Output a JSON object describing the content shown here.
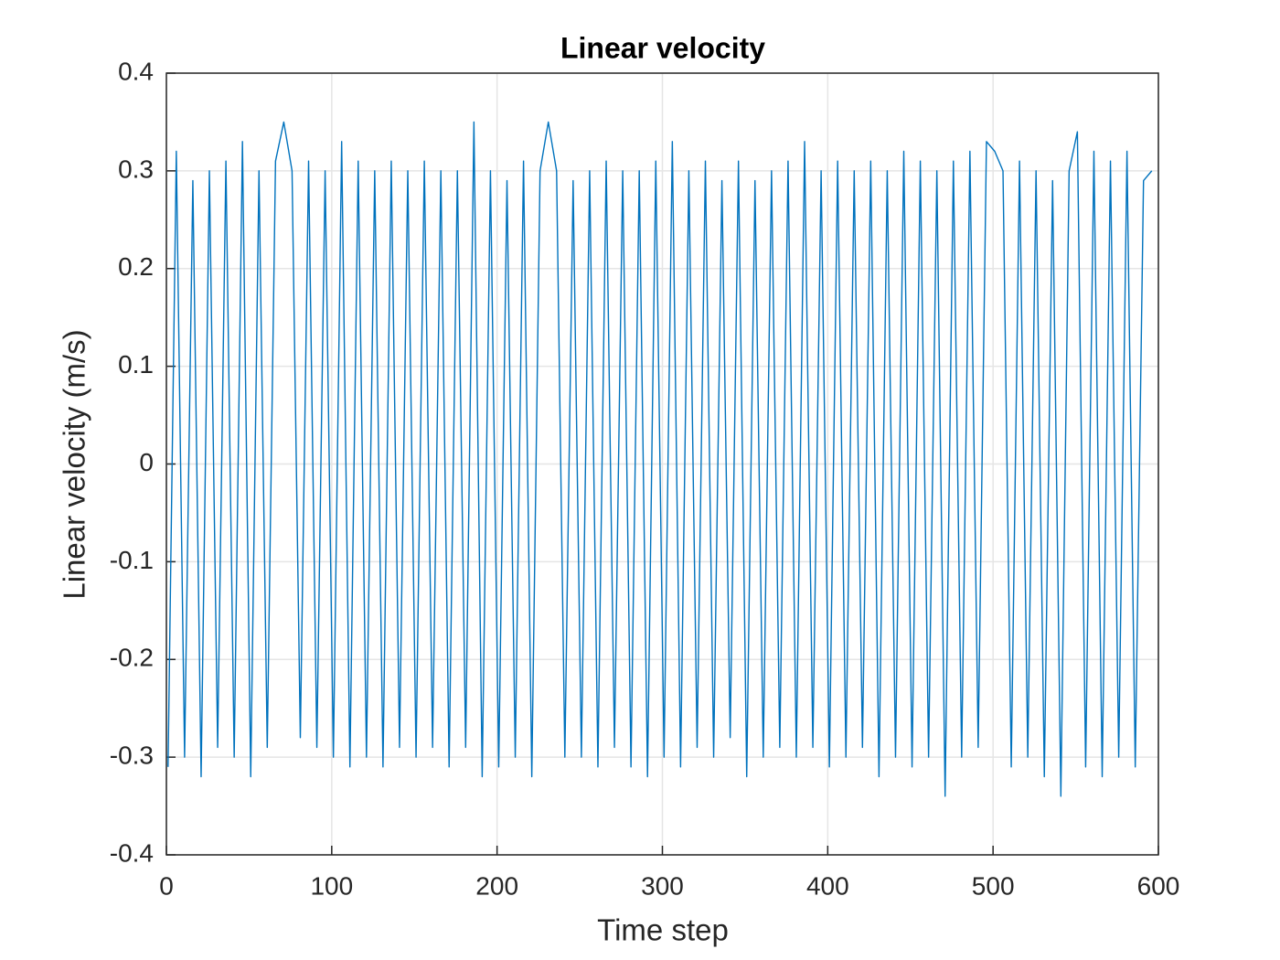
{
  "chart_data": {
    "type": "line",
    "title": "Linear velocity",
    "x_label": "Time step",
    "y_label": "Linear velocity (m/s)",
    "x": [
      1,
      6,
      11,
      16,
      21,
      26,
      31,
      36,
      41,
      46,
      51,
      56,
      61,
      66,
      71,
      76,
      81,
      86,
      91,
      96,
      101,
      106,
      111,
      116,
      121,
      126,
      131,
      136,
      141,
      146,
      151,
      156,
      161,
      166,
      171,
      176,
      181,
      186,
      191,
      196,
      201,
      206,
      211,
      216,
      221,
      226,
      231,
      236,
      241,
      246,
      251,
      256,
      261,
      266,
      271,
      276,
      281,
      286,
      291,
      296,
      301,
      306,
      311,
      316,
      321,
      326,
      331,
      336,
      341,
      346,
      351,
      356,
      361,
      366,
      371,
      376,
      381,
      386,
      391,
      396,
      401,
      406,
      411,
      416,
      421,
      426,
      431,
      436,
      441,
      446,
      451,
      456,
      461,
      466,
      471,
      476,
      481,
      486,
      491,
      496,
      501,
      506,
      511,
      516,
      521,
      526,
      531,
      536,
      541,
      546,
      551,
      556,
      561,
      566,
      571,
      576,
      581,
      586,
      591,
      596
    ],
    "values": [
      -0.31,
      0.32,
      -0.3,
      0.29,
      -0.32,
      0.3,
      -0.29,
      0.31,
      -0.3,
      0.33,
      -0.32,
      0.3,
      -0.29,
      0.31,
      0.35,
      0.3,
      -0.28,
      0.31,
      -0.29,
      0.3,
      -0.3,
      0.33,
      -0.31,
      0.31,
      -0.3,
      0.3,
      -0.31,
      0.31,
      -0.29,
      0.3,
      -0.3,
      0.31,
      -0.29,
      0.3,
      -0.31,
      0.3,
      -0.29,
      0.35,
      -0.32,
      0.3,
      -0.31,
      0.29,
      -0.3,
      0.31,
      -0.32,
      0.3,
      0.35,
      0.3,
      -0.3,
      0.29,
      -0.3,
      0.3,
      -0.31,
      0.31,
      -0.29,
      0.3,
      -0.31,
      0.3,
      -0.32,
      0.31,
      -0.3,
      0.33,
      -0.31,
      0.3,
      -0.29,
      0.31,
      -0.3,
      0.29,
      -0.28,
      0.31,
      -0.32,
      0.29,
      -0.3,
      0.3,
      -0.29,
      0.31,
      -0.3,
      0.33,
      -0.29,
      0.3,
      -0.31,
      0.31,
      -0.3,
      0.3,
      -0.29,
      0.31,
      -0.32,
      0.3,
      -0.3,
      0.32,
      -0.31,
      0.31,
      -0.3,
      0.3,
      -0.34,
      0.31,
      -0.3,
      0.32,
      -0.29,
      0.33,
      0.32,
      0.3,
      -0.31,
      0.31,
      -0.3,
      0.3,
      -0.32,
      0.29,
      -0.34,
      0.3,
      0.34,
      -0.31,
      0.32,
      -0.32,
      0.31,
      -0.3,
      0.32,
      -0.31,
      0.29,
      0.3
    ],
    "color": "#0072bd",
    "xlim": [
      0,
      600
    ],
    "xticks": [
      0,
      100,
      200,
      300,
      400,
      500,
      600
    ],
    "ylim": [
      -0.4,
      0.4
    ],
    "yticks": [
      -0.4,
      -0.3,
      -0.2,
      -0.1,
      0,
      0.1,
      0.2,
      0.3,
      0.4
    ],
    "grid": true
  }
}
